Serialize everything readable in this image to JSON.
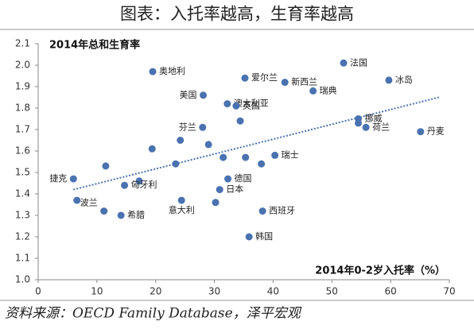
{
  "chart_data": {
    "type": "scatter",
    "title": "图表：入托率越高，生育率越高",
    "y_label": "2014年总和生育率",
    "x_label": "2014年0-2岁入托率（%）",
    "source": "资料来源：OECD Family Database，泽平宏观",
    "color": "#4a72b0",
    "x": [
      19.5,
      35.2,
      42,
      52,
      59.7,
      46.8,
      28.1,
      32.2,
      33.7,
      34.4,
      54.5,
      54.5,
      55.8,
      65.1,
      28,
      24.2,
      29,
      19.4,
      35.3,
      40.3,
      31.5,
      38,
      23.4,
      11.5,
      6,
      17.2,
      32.3,
      14.7,
      30.9,
      6.6,
      24.4,
      30.2,
      11.2,
      38.2,
      14.1,
      35.9
    ],
    "y": [
      1.97,
      1.94,
      1.92,
      2.01,
      1.93,
      1.88,
      1.86,
      1.82,
      1.81,
      1.74,
      1.75,
      1.73,
      1.71,
      1.69,
      1.71,
      1.65,
      1.63,
      1.61,
      1.57,
      1.58,
      1.57,
      1.54,
      1.54,
      1.53,
      1.47,
      1.46,
      1.47,
      1.44,
      1.42,
      1.37,
      1.37,
      1.36,
      1.32,
      1.32,
      1.3,
      1.2
    ],
    "labels": [
      "奥地利",
      "爱尔兰",
      "新西兰",
      "法国",
      "冰岛",
      "瑞典",
      "美国",
      "澳大利亚",
      "英国",
      null,
      "挪威",
      null,
      "荷兰",
      "丹麦",
      "芬兰",
      null,
      null,
      null,
      null,
      "瑞士",
      null,
      null,
      null,
      null,
      "捷克",
      null,
      "德国",
      "匈牙利",
      "日本",
      null,
      "意大利",
      null,
      "波兰",
      "西班牙",
      "希腊",
      "韩国"
    ],
    "trend": {
      "x": [
        6,
        68.2
      ],
      "y": [
        1.42,
        1.85
      ]
    },
    "xlim": [
      0,
      70
    ],
    "xticks": [
      0,
      10,
      20,
      30,
      40,
      50,
      60,
      70
    ],
    "ylim": [
      1,
      2.1
    ],
    "yticks": [
      {
        "value": 1,
        "label": "1.0"
      },
      1.1,
      1.2,
      1.3,
      1.4,
      1.5,
      1.6,
      1.7,
      1.8,
      1.9,
      {
        "value": 2,
        "label": "2.0"
      },
      2.1
    ]
  }
}
